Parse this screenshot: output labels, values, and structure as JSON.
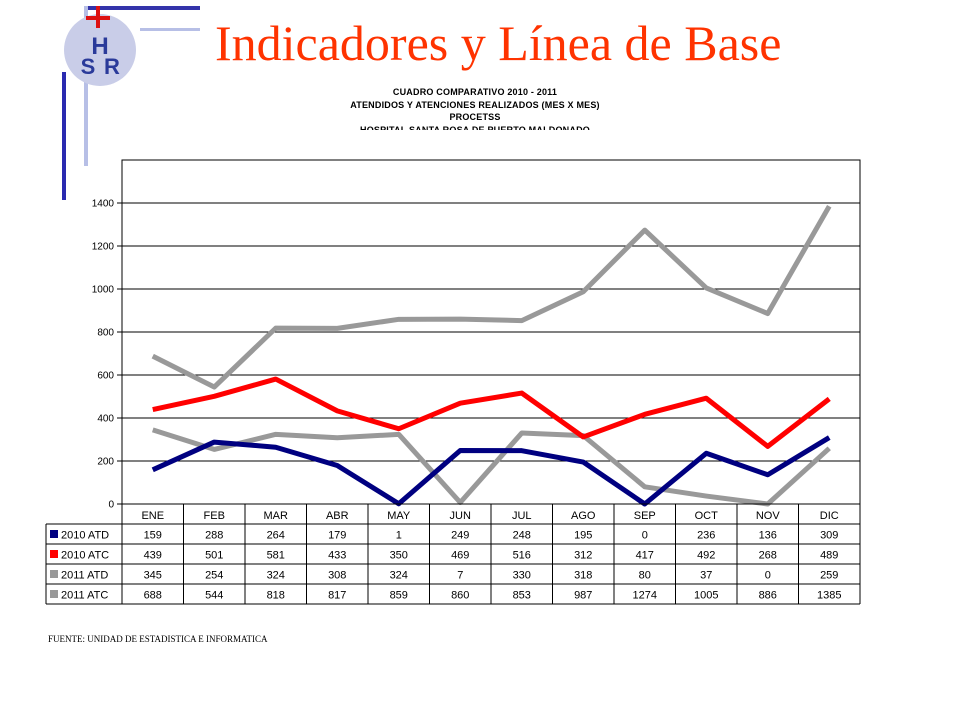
{
  "slide": {
    "title": "Indicadores y Línea de Base",
    "logo_letters": "HSR",
    "source": "FUENTE: UNIDAD DE ESTADISTICA E INFORMATICA"
  },
  "chart_data": {
    "type": "line",
    "title_lines": [
      "CUADRO COMPARATIVO 2010 - 2011",
      "ATENDIDOS Y ATENCIONES  REALIZADOS (MES X MES)",
      "PROCETSS",
      "HOSPITAL SANTA ROSA DE PUERTO MALDONADO"
    ],
    "categories": [
      "ENE",
      "FEB",
      "MAR",
      "ABR",
      "MAY",
      "JUN",
      "JUL",
      "AGO",
      "SEP",
      "OCT",
      "NOV",
      "DIC"
    ],
    "series": [
      {
        "name": "2010 ATD",
        "color": "#000080",
        "values": [
          159,
          288,
          264,
          179,
          1,
          249,
          248,
          195,
          0,
          236,
          136,
          309
        ]
      },
      {
        "name": "2010 ATC",
        "color": "#ff0000",
        "values": [
          439,
          501,
          581,
          433,
          350,
          469,
          516,
          312,
          417,
          492,
          268,
          489
        ]
      },
      {
        "name": "2011 ATD",
        "color": "#999999",
        "values": [
          345,
          254,
          324,
          308,
          324,
          7,
          330,
          318,
          80,
          37,
          0,
          259
        ]
      },
      {
        "name": "2011 ATC",
        "color": "#999999",
        "values": [
          688,
          544,
          818,
          817,
          859,
          860,
          853,
          987,
          1274,
          1005,
          886,
          1385
        ]
      }
    ],
    "yticks": [
      0,
      200,
      400,
      600,
      800,
      1000,
      1200,
      1400
    ],
    "ylim": [
      0,
      1600
    ],
    "grid": true,
    "legend": "data table below chart"
  }
}
